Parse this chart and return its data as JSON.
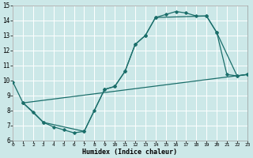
{
  "xlabel": "Humidex (Indice chaleur)",
  "xlim": [
    0,
    23
  ],
  "ylim": [
    6,
    15
  ],
  "xticks": [
    0,
    1,
    2,
    3,
    4,
    5,
    6,
    7,
    8,
    9,
    10,
    11,
    12,
    13,
    14,
    15,
    16,
    17,
    18,
    19,
    20,
    21,
    22,
    23
  ],
  "yticks": [
    6,
    7,
    8,
    9,
    10,
    11,
    12,
    13,
    14,
    15
  ],
  "bg_color": "#cce8e8",
  "grid_color": "#ffffff",
  "line_color": "#1a6e6a",
  "curve1_x": [
    0,
    1,
    2,
    3,
    4,
    5,
    6,
    7,
    8,
    9,
    10,
    11,
    12,
    13,
    14,
    15,
    16,
    17,
    18,
    19,
    20,
    21,
    22,
    23
  ],
  "curve1_y": [
    9.9,
    8.5,
    7.9,
    7.2,
    6.9,
    6.7,
    6.5,
    6.6,
    8.0,
    9.4,
    9.6,
    10.6,
    12.4,
    13.0,
    14.2,
    14.4,
    14.6,
    14.5,
    14.3,
    14.3,
    13.2,
    10.4,
    10.3,
    10.4
  ],
  "curve2_x": [
    1,
    2,
    3,
    4,
    5,
    7,
    8,
    9,
    10,
    11,
    12,
    13,
    14,
    15,
    16,
    17,
    18,
    19,
    20,
    22,
    23
  ],
  "curve2_y": [
    8.5,
    7.9,
    7.2,
    6.9,
    6.7,
    6.6,
    8.0,
    9.4,
    9.6,
    10.6,
    12.4,
    13.0,
    14.2,
    14.4,
    14.6,
    14.5,
    14.3,
    14.3,
    13.2,
    10.3,
    10.4
  ],
  "curve3_x": [
    1,
    3,
    7,
    9,
    10,
    11,
    12,
    13,
    14,
    19,
    20,
    22,
    23
  ],
  "curve3_y": [
    8.5,
    7.2,
    6.6,
    9.4,
    9.6,
    10.6,
    12.4,
    13.0,
    14.2,
    14.3,
    13.2,
    10.3,
    10.4
  ],
  "line_x": [
    1,
    23
  ],
  "line_y": [
    8.5,
    10.4
  ]
}
